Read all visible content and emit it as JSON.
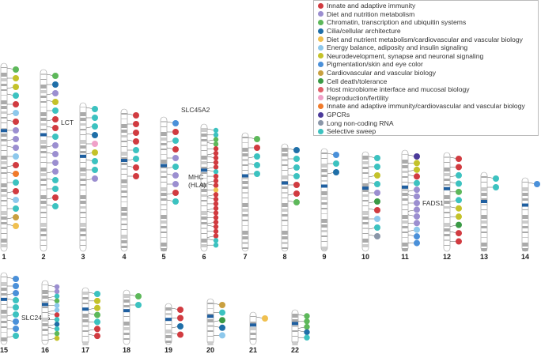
{
  "legend": [
    {
      "label": "Innate and adaptive immunity",
      "color": "#d13b40"
    },
    {
      "label": "Diet and nutrition metabolism",
      "color": "#9b8ed0"
    },
    {
      "label": "Chromatin, transcription and ubiquitin systems",
      "color": "#5db85a"
    },
    {
      "label": "Cilia/cellular architecture",
      "color": "#1f6fa8"
    },
    {
      "label": "Diet and nutrient metabolism/cardiovascular and vascular biology",
      "color": "#f0c050"
    },
    {
      "label": "Energy balance, adiposity and insulin signaling",
      "color": "#8dc8ec"
    },
    {
      "label": "Neurodevelopment, synapse and neuronal signaling",
      "color": "#c4c22a"
    },
    {
      "label": "Pigmentation/skin and eye color",
      "color": "#4a90d9"
    },
    {
      "label": "Cardiovascular and vascular biology",
      "color": "#c9a040"
    },
    {
      "label": "Cell death/tolerance",
      "color": "#3a9a45"
    },
    {
      "label": "Host microbiome interface and mucosal biology",
      "color": "#e0606a"
    },
    {
      "label": "Reproduction/fertility",
      "color": "#f0a0c8"
    },
    {
      "label": "Innate and adaptive immunity/cardiovascular and vascular biology",
      "color": "#f07a2a"
    },
    {
      "label": "GPCRs",
      "color": "#4b3a9a"
    },
    {
      "label": "Long non-coding RNA",
      "color": "#8a96a8"
    },
    {
      "label": "Selective sweep",
      "color": "#3cc2c0"
    }
  ],
  "chromosomes": [
    {
      "label": "1",
      "dots": [
        2,
        6,
        6,
        15,
        0,
        5,
        0,
        1,
        1,
        1,
        5,
        0,
        12,
        15,
        0,
        5,
        15,
        8,
        4
      ]
    },
    {
      "label": "2",
      "dots": [
        2,
        3,
        1,
        6,
        15,
        0,
        0,
        15,
        1,
        1,
        1,
        1,
        15,
        15,
        0,
        15
      ],
      "gene": "LCT"
    },
    {
      "label": "3",
      "dots": [
        15,
        15,
        15,
        3,
        11,
        6,
        15,
        15,
        1
      ]
    },
    {
      "label": "4",
      "dots": [
        0,
        0,
        0,
        0,
        15,
        15,
        0,
        0
      ]
    },
    {
      "label": "5",
      "dots": [
        7,
        0,
        15,
        0,
        1,
        15,
        1,
        1,
        0,
        15
      ],
      "gene": "SLC45A2"
    },
    {
      "label": "6",
      "dots": [
        15,
        15,
        2,
        2,
        0,
        0,
        0,
        0,
        0,
        15,
        0,
        0,
        0,
        4,
        0,
        0,
        0,
        0,
        0,
        0,
        0,
        0,
        0,
        0,
        15,
        15
      ],
      "gene": "MHC\n(HLA)"
    },
    {
      "label": "7",
      "dots": [
        2,
        0,
        15,
        15,
        15
      ]
    },
    {
      "label": "8",
      "dots": [
        3,
        15,
        15,
        15,
        0,
        0,
        2
      ]
    },
    {
      "label": "9",
      "dots": [
        7,
        15,
        3
      ]
    },
    {
      "label": "10",
      "dots": [
        15,
        15,
        6,
        15,
        1,
        9,
        0,
        5,
        15,
        14
      ]
    },
    {
      "label": "11",
      "dots": [
        13,
        6,
        6,
        0,
        15,
        1,
        1,
        1,
        1,
        1,
        1,
        5,
        7,
        7
      ],
      "gene": "FADS1/2"
    },
    {
      "label": "12",
      "dots": [
        0,
        0,
        15,
        15,
        2,
        15,
        6,
        6,
        9,
        0,
        0
      ]
    },
    {
      "label": "13",
      "dots": [
        15,
        15
      ]
    },
    {
      "label": "14",
      "dots": [
        7
      ]
    },
    {
      "label": "15",
      "dots": [
        7,
        7,
        7,
        15,
        15,
        15,
        7,
        7,
        15
      ],
      "gene": "SLC24A5"
    },
    {
      "label": "16",
      "dots": [
        1,
        1,
        15,
        2,
        5,
        5,
        0,
        15,
        3,
        15,
        2,
        6
      ]
    },
    {
      "label": "17",
      "dots": [
        15,
        6,
        6,
        2,
        15,
        0,
        0
      ]
    },
    {
      "label": "18",
      "dots": [
        2,
        15
      ]
    },
    {
      "label": "19",
      "dots": [
        0,
        0,
        3,
        0
      ]
    },
    {
      "label": "20",
      "dots": [
        8,
        15,
        9,
        3,
        5
      ]
    },
    {
      "label": "21",
      "dots": [
        4
      ]
    },
    {
      "label": "22",
      "dots": [
        2,
        2,
        2,
        3,
        15
      ]
    }
  ]
}
